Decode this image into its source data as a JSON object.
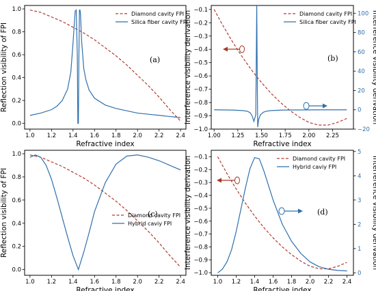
{
  "colors": {
    "diamond": "#b03a2e",
    "silica": "#2e6fac",
    "arrow_brown": "#a33a28",
    "arrow_blue": "#2e6fac"
  },
  "chart_data": [
    {
      "id": "a",
      "type": "line",
      "panel_label": "(a)",
      "xlabel": "Refractive index",
      "ylabel": "Reflection visibility of FPI",
      "xlim": [
        0.95,
        2.45
      ],
      "ylim": [
        -0.05,
        1.03
      ],
      "xticks": [
        1.0,
        1.2,
        1.4,
        1.6,
        1.8,
        2.0,
        2.2,
        2.4
      ],
      "xtick_labels": [
        "1.0",
        "1.2",
        "1.4",
        "1.6",
        "1.8",
        "2.0",
        "2.2",
        "2.4"
      ],
      "yticks": [
        0.0,
        0.2,
        0.4,
        0.6,
        0.8,
        1.0
      ],
      "ytick_labels": [
        "0.0",
        "0.2",
        "0.4",
        "0.6",
        "0.8",
        "1.0"
      ],
      "legend_position": "top-right",
      "series": [
        {
          "name": "Diamond cavity FPI",
          "style": "dashed",
          "color_key": "diamond",
          "x": [
            1.0,
            1.1,
            1.2,
            1.3,
            1.4,
            1.5,
            1.6,
            1.7,
            1.8,
            1.9,
            2.0,
            2.1,
            2.2,
            2.3,
            2.4
          ],
          "y": [
            0.99,
            0.97,
            0.93,
            0.89,
            0.84,
            0.79,
            0.73,
            0.66,
            0.59,
            0.51,
            0.42,
            0.33,
            0.23,
            0.12,
            0.02
          ]
        },
        {
          "name": "Silica fiber cavity FPI",
          "style": "solid",
          "color_key": "silica",
          "x": [
            1.0,
            1.1,
            1.2,
            1.25,
            1.3,
            1.35,
            1.38,
            1.4,
            1.42,
            1.43,
            1.44,
            1.445,
            1.45,
            1.455,
            1.46,
            1.465,
            1.47,
            1.48,
            1.5,
            1.52,
            1.55,
            1.6,
            1.7,
            1.8,
            1.9,
            2.0,
            2.1,
            2.2,
            2.3,
            2.4
          ],
          "y": [
            0.07,
            0.09,
            0.12,
            0.15,
            0.2,
            0.3,
            0.45,
            0.7,
            0.98,
            0.99,
            0.6,
            0.0,
            0.0,
            0.6,
            0.99,
            0.99,
            0.95,
            0.72,
            0.48,
            0.38,
            0.29,
            0.22,
            0.16,
            0.13,
            0.11,
            0.09,
            0.08,
            0.07,
            0.06,
            0.05
          ]
        }
      ]
    },
    {
      "id": "b",
      "type": "line",
      "panel_label": "(b)",
      "xlabel": "Refractive index",
      "ylabel": "Interference visibility derivation",
      "ylabel_right": "Interference visibility derivation",
      "xlim": [
        0.97,
        2.47
      ],
      "ylim": [
        -1.0,
        -0.07
      ],
      "ylim_right": [
        -20,
        108
      ],
      "xticks": [
        1.0,
        1.25,
        1.5,
        1.75,
        2.0,
        2.25
      ],
      "xtick_labels": [
        "1.00",
        "1.25",
        "1.50",
        "1.75",
        "2.00",
        "2.25"
      ],
      "yticks": [
        -1.0,
        -0.9,
        -0.8,
        -0.7,
        -0.6,
        -0.5,
        -0.4,
        -0.3,
        -0.2,
        -0.1
      ],
      "ytick_labels": [
        "−1.0",
        "−0.9",
        "−0.8",
        "−0.7",
        "−0.6",
        "−0.5",
        "−0.4",
        "−0.3",
        "−0.2",
        "−0.1"
      ],
      "yticks_right": [
        -20,
        0,
        20,
        40,
        60,
        80,
        100
      ],
      "ytick_labels_right": [
        "−20",
        "0",
        "20",
        "40",
        "60",
        "80",
        "100"
      ],
      "legend_position": "top-right",
      "series": [
        {
          "name": "Diamond cavity FPI",
          "style": "dashed",
          "color_key": "diamond",
          "axis": "left",
          "x": [
            1.0,
            1.1,
            1.2,
            1.3,
            1.4,
            1.5,
            1.6,
            1.7,
            1.8,
            1.9,
            2.0,
            2.1,
            2.2,
            2.3,
            2.4
          ],
          "y": [
            -0.1,
            -0.23,
            -0.35,
            -0.46,
            -0.56,
            -0.65,
            -0.73,
            -0.8,
            -0.86,
            -0.91,
            -0.95,
            -0.97,
            -0.97,
            -0.95,
            -0.92
          ]
        },
        {
          "name": "Silica fiber cavity FPI",
          "style": "solid",
          "color_key": "silica",
          "axis": "right",
          "x": [
            1.0,
            1.2,
            1.3,
            1.35,
            1.38,
            1.4,
            1.42,
            1.44,
            1.445,
            1.45,
            1.455,
            1.46,
            1.47,
            1.49,
            1.52,
            1.55,
            1.6,
            1.7,
            1.8,
            2.0,
            2.2,
            2.4
          ],
          "y": [
            0,
            -0.3,
            -0.8,
            -1.5,
            -3,
            -6,
            -12,
            -5,
            50,
            108,
            40,
            -18,
            -10,
            -5,
            -2.5,
            -1.5,
            -0.8,
            -0.4,
            -0.2,
            -0.1,
            0,
            0
          ]
        }
      ]
    },
    {
      "id": "c",
      "type": "line",
      "panel_label": "(c)",
      "xlabel": "Refractive index",
      "ylabel": "Reflection visibility of FPI",
      "xlim": [
        0.95,
        2.45
      ],
      "ylim": [
        -0.05,
        1.03
      ],
      "xticks": [
        1.0,
        1.2,
        1.4,
        1.6,
        1.8,
        2.0,
        2.2,
        2.4
      ],
      "xtick_labels": [
        "1.0",
        "1.2",
        "1.4",
        "1.6",
        "1.8",
        "2.0",
        "2.2",
        "2.4"
      ],
      "yticks": [
        0.0,
        0.2,
        0.4,
        0.6,
        0.8,
        1.0
      ],
      "ytick_labels": [
        "0.0",
        "0.2",
        "0.4",
        "0.6",
        "0.8",
        "1.0"
      ],
      "legend_position": "center-right",
      "series": [
        {
          "name": "Diamond cavity FPI",
          "style": "dashed",
          "color_key": "diamond",
          "x": [
            1.0,
            1.1,
            1.2,
            1.3,
            1.4,
            1.5,
            1.6,
            1.7,
            1.8,
            1.9,
            2.0,
            2.1,
            2.2,
            2.3,
            2.4
          ],
          "y": [
            0.99,
            0.97,
            0.93,
            0.89,
            0.84,
            0.79,
            0.73,
            0.66,
            0.59,
            0.51,
            0.42,
            0.33,
            0.23,
            0.12,
            0.02
          ]
        },
        {
          "name": "Hybrid caviy FPI",
          "style": "solid",
          "color_key": "silica",
          "x": [
            1.0,
            1.05,
            1.1,
            1.15,
            1.2,
            1.25,
            1.3,
            1.35,
            1.4,
            1.45,
            1.5,
            1.55,
            1.6,
            1.7,
            1.8,
            1.9,
            2.0,
            2.1,
            2.2,
            2.3,
            2.4
          ],
          "y": [
            0.97,
            0.99,
            0.97,
            0.9,
            0.78,
            0.62,
            0.45,
            0.28,
            0.12,
            0.0,
            0.15,
            0.32,
            0.5,
            0.75,
            0.91,
            0.98,
            0.99,
            0.97,
            0.94,
            0.9,
            0.86
          ]
        }
      ]
    },
    {
      "id": "d",
      "type": "line",
      "panel_label": "(d)",
      "xlabel": "Refractive index",
      "ylabel": "Interference visibility derivation",
      "ylabel_right": "Interference visibility derivation",
      "xlim": [
        0.93,
        2.47
      ],
      "ylim": [
        -1.02,
        -0.05
      ],
      "ylim_right": [
        -0.1,
        5.05
      ],
      "xticks": [
        1.0,
        1.2,
        1.4,
        1.6,
        1.8,
        2.0,
        2.2,
        2.4
      ],
      "xtick_labels": [
        "1.0",
        "1.2",
        "1.4",
        "1.6",
        "1.8",
        "2.0",
        "2.2",
        "2.4"
      ],
      "yticks": [
        -1.0,
        -0.9,
        -0.8,
        -0.7,
        -0.6,
        -0.5,
        -0.4,
        -0.3,
        -0.2,
        -0.1
      ],
      "ytick_labels": [
        "−1.0",
        "−0.9",
        "−0.8",
        "−0.7",
        "−0.6",
        "−0.5",
        "−0.4",
        "−0.3",
        "−0.2",
        "−0.1"
      ],
      "yticks_right": [
        0,
        1,
        2,
        3,
        4,
        5
      ],
      "ytick_labels_right": [
        "0",
        "1",
        "2",
        "3",
        "4",
        "5"
      ],
      "legend_position": "top-right",
      "series": [
        {
          "name": "Diamond cavity FPI",
          "style": "dashed",
          "color_key": "diamond",
          "axis": "left",
          "x": [
            1.0,
            1.1,
            1.2,
            1.3,
            1.4,
            1.5,
            1.6,
            1.7,
            1.8,
            1.9,
            2.0,
            2.1,
            2.2,
            2.3,
            2.4
          ],
          "y": [
            -0.1,
            -0.23,
            -0.35,
            -0.46,
            -0.56,
            -0.65,
            -0.73,
            -0.8,
            -0.86,
            -0.91,
            -0.95,
            -0.97,
            -0.97,
            -0.95,
            -0.92
          ]
        },
        {
          "name": "Hybrid caviy FPI",
          "style": "solid",
          "color_key": "silica",
          "axis": "right",
          "x": [
            1.0,
            1.05,
            1.1,
            1.15,
            1.2,
            1.25,
            1.3,
            1.35,
            1.4,
            1.45,
            1.5,
            1.55,
            1.6,
            1.65,
            1.7,
            1.8,
            1.9,
            2.0,
            2.1,
            2.2,
            2.3,
            2.4
          ],
          "y": [
            0.0,
            0.15,
            0.45,
            0.95,
            1.7,
            2.6,
            3.5,
            4.3,
            4.75,
            4.7,
            4.2,
            3.6,
            3.0,
            2.5,
            2.0,
            1.3,
            0.8,
            0.45,
            0.25,
            0.15,
            0.1,
            0.08
          ]
        }
      ]
    }
  ]
}
